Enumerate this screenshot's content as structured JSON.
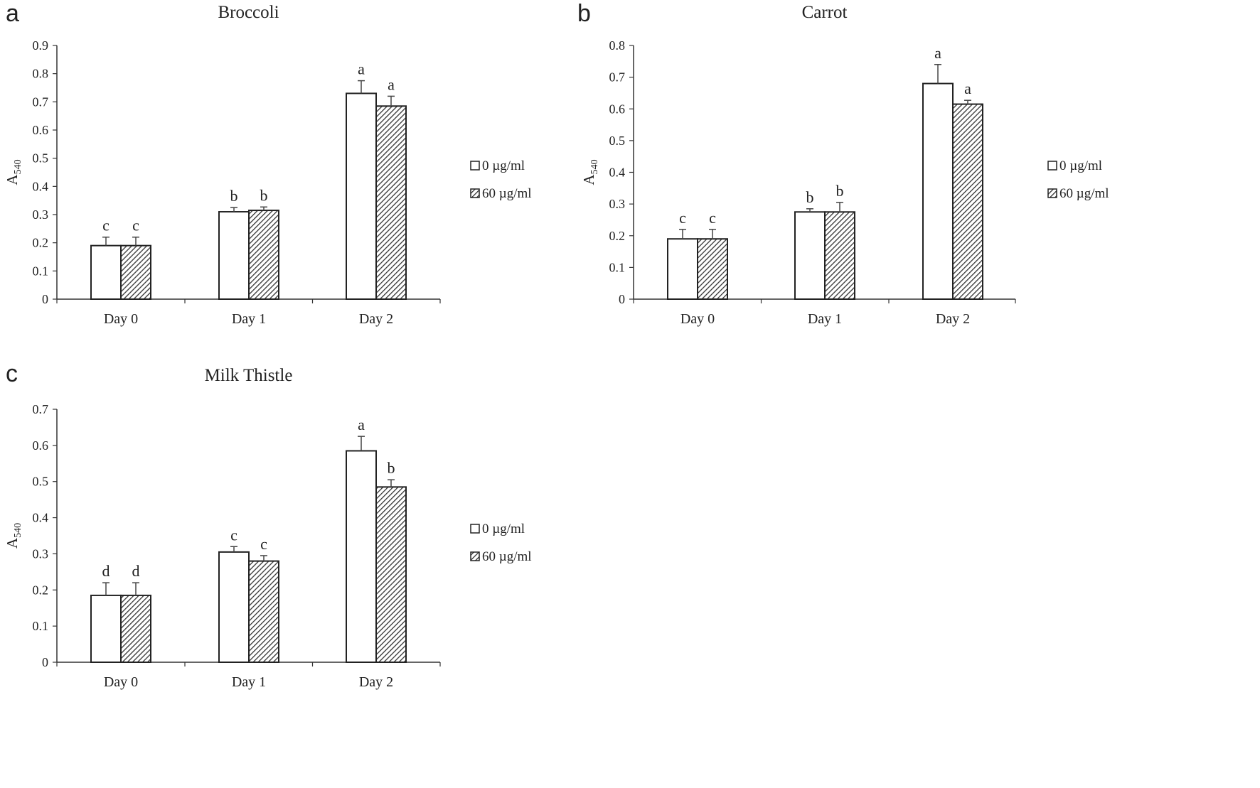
{
  "figure": {
    "legend": {
      "items": [
        "0 µg/ml",
        "60 µg/ml"
      ]
    }
  },
  "chart_data": [
    {
      "type": "bar",
      "panel_letter": "a",
      "title": "Broccoli",
      "xlabel": "",
      "ylabel_main": "A",
      "ylabel_sub": "540",
      "categories": [
        "Day 0",
        "Day 1",
        "Day 2"
      ],
      "yticks": [
        "0",
        "0.1",
        "0.2",
        "0.3",
        "0.4",
        "0.5",
        "0.6",
        "0.7",
        "0.8",
        "0.9"
      ],
      "ylim": [
        0,
        0.9
      ],
      "series": [
        {
          "name": "0 µg/ml",
          "pattern": "plain",
          "values": [
            0.19,
            0.31,
            0.73
          ],
          "errors": [
            0.03,
            0.015,
            0.045
          ],
          "letters": [
            "c",
            "b",
            "a"
          ]
        },
        {
          "name": "60 µg/ml",
          "pattern": "hatched",
          "values": [
            0.19,
            0.315,
            0.685
          ],
          "errors": [
            0.03,
            0.012,
            0.035
          ],
          "letters": [
            "c",
            "b",
            "a"
          ]
        }
      ],
      "legend_position": "right",
      "grid": false
    },
    {
      "type": "bar",
      "panel_letter": "b",
      "title": "Carrot",
      "xlabel": "",
      "ylabel_main": "A",
      "ylabel_sub": "540",
      "categories": [
        "Day 0",
        "Day 1",
        "Day 2"
      ],
      "yticks": [
        "0",
        "0.1",
        "0.2",
        "0.3",
        "0.4",
        "0.5",
        "0.6",
        "0.7",
        "0.8"
      ],
      "ylim": [
        0,
        0.8
      ],
      "series": [
        {
          "name": "0 µg/ml",
          "pattern": "plain",
          "values": [
            0.19,
            0.275,
            0.68
          ],
          "errors": [
            0.03,
            0.01,
            0.06
          ],
          "letters": [
            "c",
            "b",
            "a"
          ]
        },
        {
          "name": "60 µg/ml",
          "pattern": "hatched",
          "values": [
            0.19,
            0.275,
            0.615
          ],
          "errors": [
            0.03,
            0.03,
            0.012
          ],
          "letters": [
            "c",
            "b",
            "a"
          ]
        }
      ],
      "legend_position": "right",
      "grid": false
    },
    {
      "type": "bar",
      "panel_letter": "c",
      "title": "Milk Thistle",
      "xlabel": "",
      "ylabel_main": "A",
      "ylabel_sub": "540",
      "categories": [
        "Day 0",
        "Day 1",
        "Day 2"
      ],
      "yticks": [
        "0",
        "0.1",
        "0.2",
        "0.3",
        "0.4",
        "0.5",
        "0.6",
        "0.7"
      ],
      "ylim": [
        0,
        0.7
      ],
      "series": [
        {
          "name": "0 µg/ml",
          "pattern": "plain",
          "values": [
            0.185,
            0.305,
            0.585
          ],
          "errors": [
            0.035,
            0.015,
            0.04
          ],
          "letters": [
            "d",
            "c",
            "a"
          ]
        },
        {
          "name": "60 µg/ml",
          "pattern": "hatched",
          "values": [
            0.185,
            0.28,
            0.485
          ],
          "errors": [
            0.035,
            0.015,
            0.02
          ],
          "letters": [
            "d",
            "c",
            "b"
          ]
        }
      ],
      "legend_position": "right",
      "grid": false
    }
  ]
}
